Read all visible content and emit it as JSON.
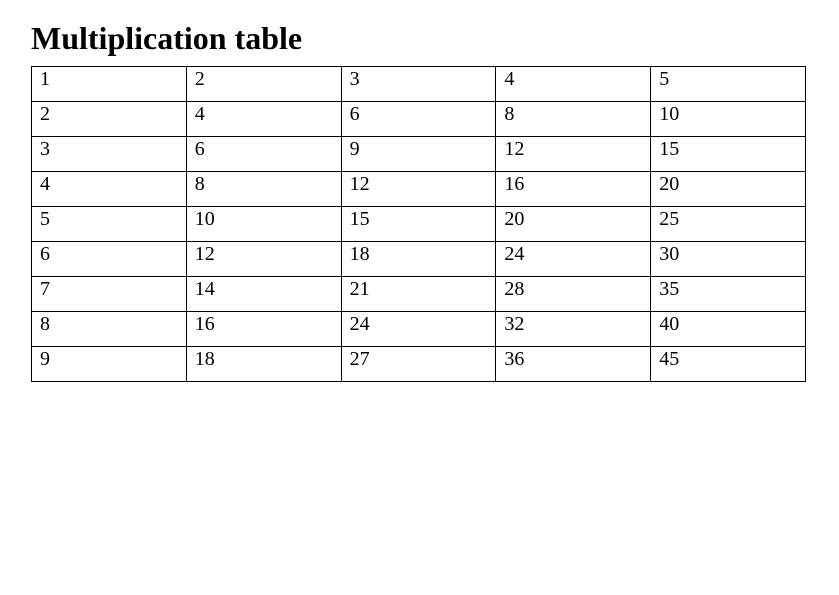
{
  "document": {
    "title": "Multiplication table"
  },
  "table": {
    "columns": 5,
    "rows": [
      [
        "1",
        "2",
        "3",
        "4",
        "5"
      ],
      [
        "2",
        "4",
        "6",
        "8",
        "10"
      ],
      [
        "3",
        "6",
        "9",
        "12",
        "15"
      ],
      [
        "4",
        "8",
        "12",
        "16",
        "20"
      ],
      [
        "5",
        "10",
        "15",
        "20",
        "25"
      ],
      [
        "6",
        "12",
        "18",
        "24",
        "30"
      ],
      [
        "7",
        "14",
        "21",
        "28",
        "35"
      ],
      [
        "8",
        "16",
        "24",
        "32",
        "40"
      ],
      [
        "9",
        "18",
        "27",
        "36",
        "45"
      ]
    ]
  },
  "colors": {
    "text": "#000000",
    "border": "#000000",
    "background": "#ffffff"
  }
}
